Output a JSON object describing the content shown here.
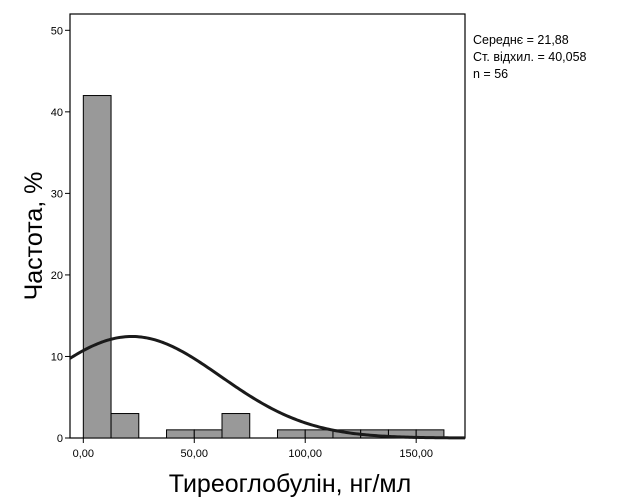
{
  "chart_data": {
    "type": "bar",
    "subtype": "histogram",
    "xlabel": "Тиреоглобулін, нг/мл",
    "ylabel": "Частота, %",
    "xlim": [
      -6,
      172
    ],
    "ylim": [
      0,
      52
    ],
    "x_ticks": [
      0,
      50,
      100,
      150
    ],
    "x_tick_labels": [
      "0,00",
      "50,00",
      "100,00",
      "150,00"
    ],
    "y_ticks": [
      0,
      10,
      20,
      30,
      40,
      50
    ],
    "y_tick_labels": [
      "0",
      "10",
      "20",
      "30",
      "40",
      "50"
    ],
    "bin_width": 12.5,
    "bins": [
      {
        "x0": 0,
        "x1": 12.5,
        "value": 42
      },
      {
        "x0": 12.5,
        "x1": 25,
        "value": 3
      },
      {
        "x0": 25,
        "x1": 37.5,
        "value": 0
      },
      {
        "x0": 37.5,
        "x1": 50,
        "value": 1
      },
      {
        "x0": 50,
        "x1": 62.5,
        "value": 1
      },
      {
        "x0": 62.5,
        "x1": 75,
        "value": 3
      },
      {
        "x0": 75,
        "x1": 87.5,
        "value": 0
      },
      {
        "x0": 87.5,
        "x1": 100,
        "value": 1
      },
      {
        "x0": 100,
        "x1": 112.5,
        "value": 1
      },
      {
        "x0": 112.5,
        "x1": 125,
        "value": 1
      },
      {
        "x0": 125,
        "x1": 137.5,
        "value": 1
      },
      {
        "x0": 137.5,
        "x1": 150,
        "value": 1
      },
      {
        "x0": 150,
        "x1": 162.5,
        "value": 1
      }
    ],
    "normal_curve": {
      "mean": 21.88,
      "sd": 40.058,
      "n": 56
    },
    "stats_lines": [
      "Середнє = 21,88",
      "Ст. відхил. = 40,058",
      "n = 56"
    ],
    "grid": false,
    "bar_color": "#999999",
    "bar_edge_color": "#000000",
    "curve_color": "#1a1a1a"
  }
}
